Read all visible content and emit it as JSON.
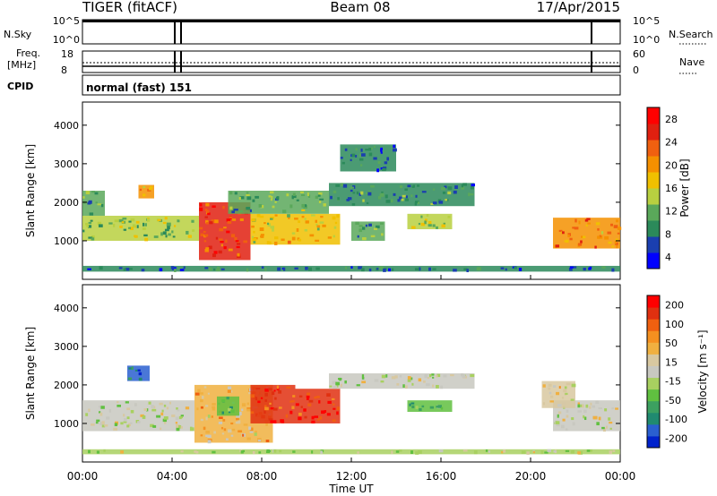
{
  "header": {
    "radar": "TIGER (fitACF)",
    "beam": "Beam 08",
    "date": "17/Apr/2015"
  },
  "status_panels": {
    "nsky_label": "N.Sky",
    "nsearch_label": "N.Search",
    "nsky_ticks": [
      "10^5",
      "10^0"
    ],
    "nsearch_ticks": [
      "10^5",
      "10^0"
    ],
    "freq_label": "Freq.",
    "freq_unit": "[MHz]",
    "freq_ticks": [
      "18",
      "8"
    ],
    "nave_label": "Nave",
    "nave_ticks": [
      "60",
      "0"
    ],
    "cpid_label": "CPID",
    "cpid_value": "normal (fast) 151"
  },
  "power_colorbar": {
    "title": "Power [dB]",
    "ticks": [
      "28",
      "24",
      "20",
      "16",
      "12",
      "8",
      "4"
    ],
    "colors": [
      "#0000ff",
      "#1a3fb0",
      "#2b8a5a",
      "#5aa85a",
      "#b8d040",
      "#f0c000",
      "#f59000",
      "#f06010",
      "#e02010",
      "#ff0000"
    ]
  },
  "velocity_colorbar": {
    "title": "Velocity [m s⁻¹]",
    "ticks": [
      "200",
      "100",
      "50",
      "15",
      "-15",
      "-50",
      "-100",
      "-200"
    ],
    "colors": [
      "#0022cc",
      "#2a5fd0",
      "#208a70",
      "#3ca060",
      "#60c040",
      "#a8d060",
      "#c8c8c0",
      "#d8c8a0",
      "#f0b040",
      "#f59020",
      "#f06010",
      "#e03010",
      "#ff0000"
    ]
  },
  "chart_data": [
    {
      "type": "heatmap",
      "name": "power",
      "ylabel": "Slant Range [km]",
      "ylim": [
        0,
        4600
      ],
      "yticks": [
        "4000",
        "3000",
        "2000",
        "1000"
      ],
      "xlim": [
        0,
        24
      ],
      "value_range": [
        0,
        30
      ],
      "units": "dB",
      "regions": [
        {
          "t0": 0.0,
          "t1": 5.2,
          "r0": 1000,
          "r1": 1650,
          "value": 12
        },
        {
          "t0": 0.0,
          "t1": 1.0,
          "r0": 1650,
          "r1": 2300,
          "value": 10
        },
        {
          "t0": 2.5,
          "t1": 3.2,
          "r0": 2100,
          "r1": 2450,
          "value": 18
        },
        {
          "t0": 5.2,
          "t1": 7.5,
          "r0": 500,
          "r1": 2000,
          "value": 24
        },
        {
          "t0": 7.5,
          "t1": 11.5,
          "r0": 900,
          "r1": 1700,
          "value": 16
        },
        {
          "t0": 6.5,
          "t1": 11.0,
          "r0": 1700,
          "r1": 2300,
          "value": 10
        },
        {
          "t0": 11.0,
          "t1": 17.5,
          "r0": 1900,
          "r1": 2500,
          "value": 8
        },
        {
          "t0": 12.0,
          "t1": 13.5,
          "r0": 1000,
          "r1": 1500,
          "value": 10
        },
        {
          "t0": 14.5,
          "t1": 16.5,
          "r0": 1300,
          "r1": 1700,
          "value": 14
        },
        {
          "t0": 11.5,
          "t1": 14.0,
          "r0": 2800,
          "r1": 3500,
          "value": 6
        },
        {
          "t0": 21.0,
          "t1": 24.0,
          "r0": 800,
          "r1": 1600,
          "value": 20
        },
        {
          "t0": 0.0,
          "t1": 24.0,
          "r0": 200,
          "r1": 350,
          "value": 6
        }
      ]
    },
    {
      "type": "heatmap",
      "name": "velocity",
      "ylabel": "Slant Range [km]",
      "xlabel": "Time UT",
      "ylim": [
        0,
        4600
      ],
      "yticks": [
        "4000",
        "3000",
        "2000",
        "1000"
      ],
      "xlim": [
        0,
        24
      ],
      "xticks": [
        "00:00",
        "04:00",
        "08:00",
        "12:00",
        "16:00",
        "20:00",
        "00:00"
      ],
      "value_range": [
        -250,
        250
      ],
      "units": "m s⁻¹",
      "regions": [
        {
          "t0": 0.0,
          "t1": 5.0,
          "r0": 800,
          "r1": 1600,
          "value": 0
        },
        {
          "t0": 2.0,
          "t1": 3.0,
          "r0": 2100,
          "r1": 2500,
          "value": -180
        },
        {
          "t0": 5.0,
          "t1": 8.5,
          "r0": 500,
          "r1": 2000,
          "value": 60
        },
        {
          "t0": 6.0,
          "t1": 7.0,
          "r0": 1200,
          "r1": 1700,
          "value": -90
        },
        {
          "t0": 7.5,
          "t1": 9.5,
          "r0": 1000,
          "r1": 2000,
          "value": 180
        },
        {
          "t0": 9.5,
          "t1": 11.5,
          "r0": 1000,
          "r1": 1900,
          "value": 200
        },
        {
          "t0": 11.0,
          "t1": 17.5,
          "r0": 1900,
          "r1": 2300,
          "value": -10
        },
        {
          "t0": 14.5,
          "t1": 16.5,
          "r0": 1300,
          "r1": 1600,
          "value": -90
        },
        {
          "t0": 21.0,
          "t1": 24.0,
          "r0": 800,
          "r1": 1600,
          "value": 0
        },
        {
          "t0": 20.5,
          "t1": 22.0,
          "r0": 1400,
          "r1": 2100,
          "value": 30
        },
        {
          "t0": 0.0,
          "t1": 24.0,
          "r0": 200,
          "r1": 330,
          "value": -20
        }
      ]
    }
  ]
}
